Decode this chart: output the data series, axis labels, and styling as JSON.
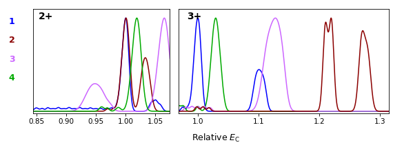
{
  "panel1_title": "2+",
  "panel2_title": "3+",
  "xlabel": "Relative $E_\\mathrm{C}$",
  "legend_labels": [
    "1",
    "2",
    "3",
    "4"
  ],
  "legend_colors": [
    "#0000ff",
    "#8b0000",
    "#cc66ff",
    "#00aa00"
  ],
  "panel1_xlim": [
    0.845,
    1.075
  ],
  "panel2_xlim": [
    0.968,
    1.315
  ],
  "panel1_xticks": [
    0.85,
    0.9,
    0.95,
    1.0,
    1.05
  ],
  "panel2_xticks": [
    1.0,
    1.1,
    1.2,
    1.3
  ],
  "bg_color": "#ffffff",
  "line_width": 1.1
}
